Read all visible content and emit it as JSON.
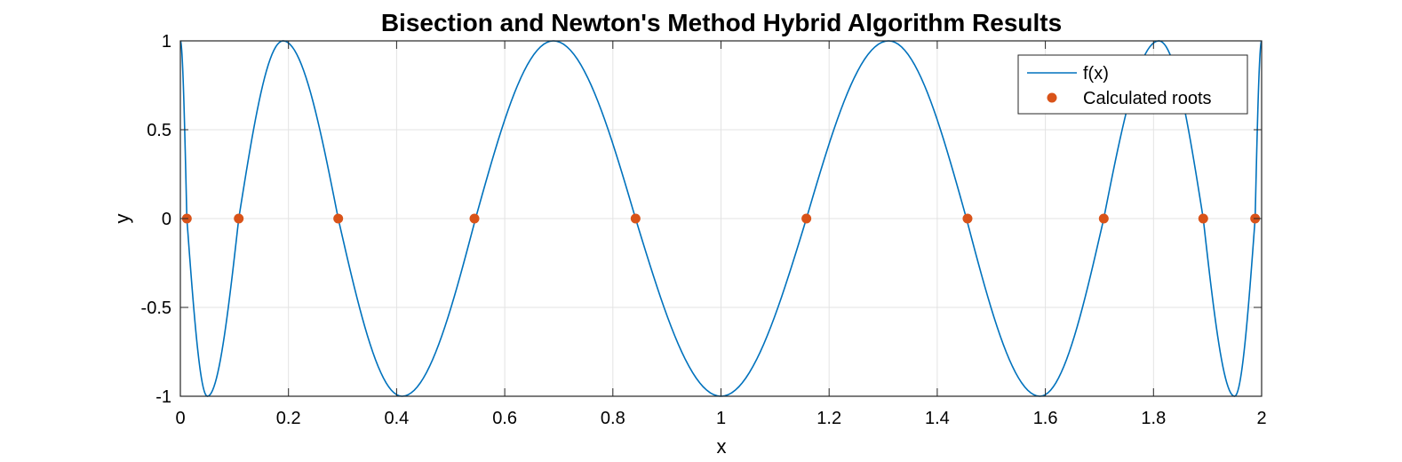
{
  "chart_data": {
    "type": "line",
    "title": "Bisection and Newton's Method Hybrid Algorithm Results",
    "xlabel": "x",
    "ylabel": "y",
    "xlim": [
      0,
      2
    ],
    "ylim": [
      -1,
      1
    ],
    "xticks": [
      0,
      0.2,
      0.4,
      0.6,
      0.8,
      1,
      1.2,
      1.4,
      1.6,
      1.8,
      2
    ],
    "xtick_labels": [
      "0",
      "0.2",
      "0.4",
      "0.6",
      "0.8",
      "1",
      "1.2",
      "1.4",
      "1.6",
      "1.8",
      "2"
    ],
    "yticks": [
      1,
      0.5,
      0,
      -0.5,
      -1
    ],
    "ytick_labels": [
      "1",
      "0.5",
      "0",
      "-0.5",
      "-1"
    ],
    "grid": true,
    "legend_position": "top-right",
    "colors": {
      "line": "#0072BD",
      "roots": "#D95319"
    },
    "series": [
      {
        "name": "f(x)",
        "type": "line",
        "x": [
          0.0,
          0.012,
          0.05,
          0.108,
          0.19,
          0.292,
          0.41,
          0.546,
          0.69,
          0.842,
          1.0,
          1.158,
          1.31,
          1.454,
          1.59,
          1.708,
          1.81,
          1.892,
          1.95,
          1.988,
          2.0
        ],
        "y": [
          1,
          0,
          -1,
          0,
          1,
          0,
          -1,
          0,
          1,
          0,
          -1,
          0,
          1,
          0,
          -1,
          0,
          1,
          0,
          -1,
          0,
          1
        ]
      },
      {
        "name": "Calculated roots",
        "type": "scatter",
        "x": [
          0.012,
          0.108,
          0.292,
          0.544,
          0.842,
          1.158,
          1.456,
          1.708,
          1.892,
          1.988
        ],
        "y": [
          0,
          0,
          0,
          0,
          0,
          0,
          0,
          0,
          0,
          0
        ]
      }
    ]
  }
}
